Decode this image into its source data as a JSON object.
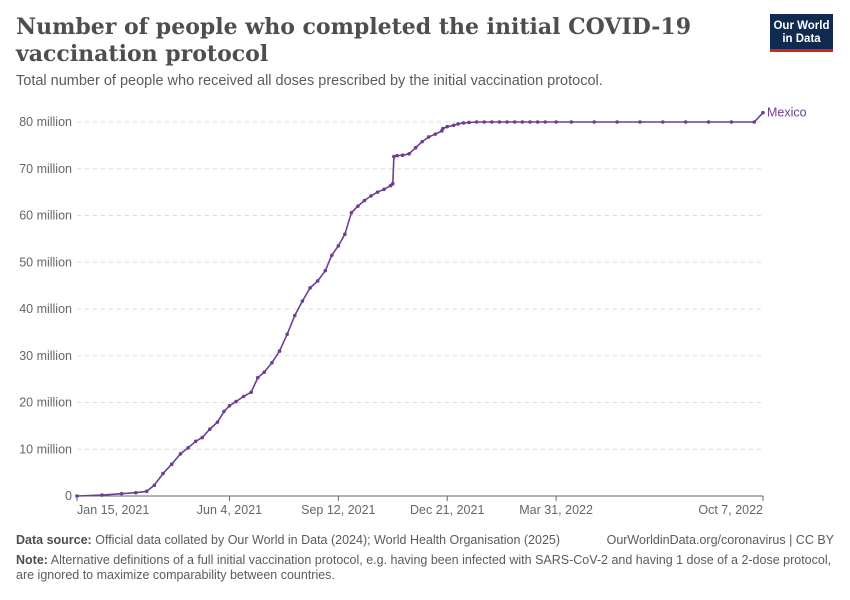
{
  "header": {
    "title": "Number of people who completed the initial COVID-19 vaccination protocol",
    "subtitle": "Total number of people who received all doses prescribed by the initial vaccination protocol.",
    "logo_line1": "Our World",
    "logo_line2": "in Data"
  },
  "footer": {
    "source_label": "Data source:",
    "source_text": "Official data collated by Our World in Data (2024); World Health Organisation (2025)",
    "url_text": "OurWorldinData.org/coronavirus | CC BY",
    "note_label": "Note:",
    "note_text": "Alternative definitions of a full initial vaccination protocol, e.g. having been infected with SARS-CoV-2 and having 1 dose of a 2-dose protocol, are ignored to maximize comparability between countries."
  },
  "colors": {
    "series": "#6d3e91",
    "grid": "#dddddd",
    "axis": "#666666"
  },
  "chart_data": {
    "type": "line",
    "title": "Number of people who completed the initial COVID-19 vaccination protocol",
    "xlabel": "",
    "ylabel": "",
    "x_ticks": [
      "Jan 15, 2021",
      "Jun 4, 2021",
      "Sep 12, 2021",
      "Dec 21, 2021",
      "Mar 31, 2022",
      "Oct 7, 2022"
    ],
    "y_ticks": [
      0,
      10000000,
      20000000,
      30000000,
      40000000,
      50000000,
      60000000,
      70000000,
      80000000
    ],
    "y_tick_labels": [
      "0",
      "10 million",
      "20 million",
      "30 million",
      "40 million",
      "50 million",
      "60 million",
      "70 million",
      "80 million"
    ],
    "ylim": [
      0,
      80000000
    ],
    "grid": true,
    "legend": "end-of-line label",
    "series": [
      {
        "name": "Mexico",
        "x": [
          "2021-01-15",
          "2021-02-07",
          "2021-02-25",
          "2021-03-10",
          "2021-03-20",
          "2021-03-27",
          "2021-04-04",
          "2021-04-12",
          "2021-04-20",
          "2021-04-27",
          "2021-05-04",
          "2021-05-10",
          "2021-05-17",
          "2021-05-24",
          "2021-05-30",
          "2021-06-04",
          "2021-06-10",
          "2021-06-17",
          "2021-06-24",
          "2021-06-30",
          "2021-07-06",
          "2021-07-13",
          "2021-07-20",
          "2021-07-27",
          "2021-08-03",
          "2021-08-10",
          "2021-08-17",
          "2021-08-24",
          "2021-08-31",
          "2021-09-06",
          "2021-09-12",
          "2021-09-18",
          "2021-09-24",
          "2021-09-30",
          "2021-10-06",
          "2021-10-12",
          "2021-10-18",
          "2021-10-24",
          "2021-10-30",
          "2021-11-01",
          "2021-11-02",
          "2021-11-05",
          "2021-11-10",
          "2021-11-16",
          "2021-11-22",
          "2021-11-28",
          "2021-12-04",
          "2021-12-10",
          "2021-12-16",
          "2021-12-17",
          "2021-12-21",
          "2021-12-27",
          "2021-12-31",
          "2022-01-05",
          "2022-01-10",
          "2022-01-17",
          "2022-01-24",
          "2022-01-31",
          "2022-02-07",
          "2022-02-14",
          "2022-02-21",
          "2022-02-28",
          "2022-03-07",
          "2022-03-14",
          "2022-03-21",
          "2022-03-31",
          "2022-04-14",
          "2022-05-05",
          "2022-05-26",
          "2022-06-16",
          "2022-07-07",
          "2022-07-28",
          "2022-08-18",
          "2022-09-08",
          "2022-09-29",
          "2022-10-07"
        ],
        "y": [
          0,
          200000,
          500000,
          700000,
          1000000,
          2300000,
          4800000,
          6800000,
          9000000,
          10300000,
          11700000,
          12500000,
          14300000,
          15800000,
          18100000,
          19300000,
          20200000,
          21300000,
          22200000,
          25300000,
          26500000,
          28500000,
          31000000,
          34600000,
          38600000,
          41700000,
          44500000,
          46000000,
          48200000,
          51500000,
          53500000,
          56000000,
          60600000,
          62000000,
          63200000,
          64200000,
          65000000,
          65600000,
          66400000,
          66800000,
          72600000,
          72800000,
          72900000,
          73200000,
          74500000,
          75800000,
          76800000,
          77400000,
          78100000,
          78600000,
          79000000,
          79300000,
          79600000,
          79800000,
          79900000,
          80000000,
          80000000,
          80000000,
          80000000,
          80000000,
          80000000,
          80000000,
          80000000,
          80000000,
          80000000,
          80000000,
          80000000,
          80000000,
          80000000,
          80000000,
          80000000,
          80000000,
          80000000,
          80000000,
          80000000,
          82000000
        ],
        "x_ticks_dates": [
          "2021-01-15",
          "2021-06-04",
          "2021-09-12",
          "2021-12-21",
          "2022-03-31",
          "2022-10-07"
        ]
      }
    ]
  }
}
